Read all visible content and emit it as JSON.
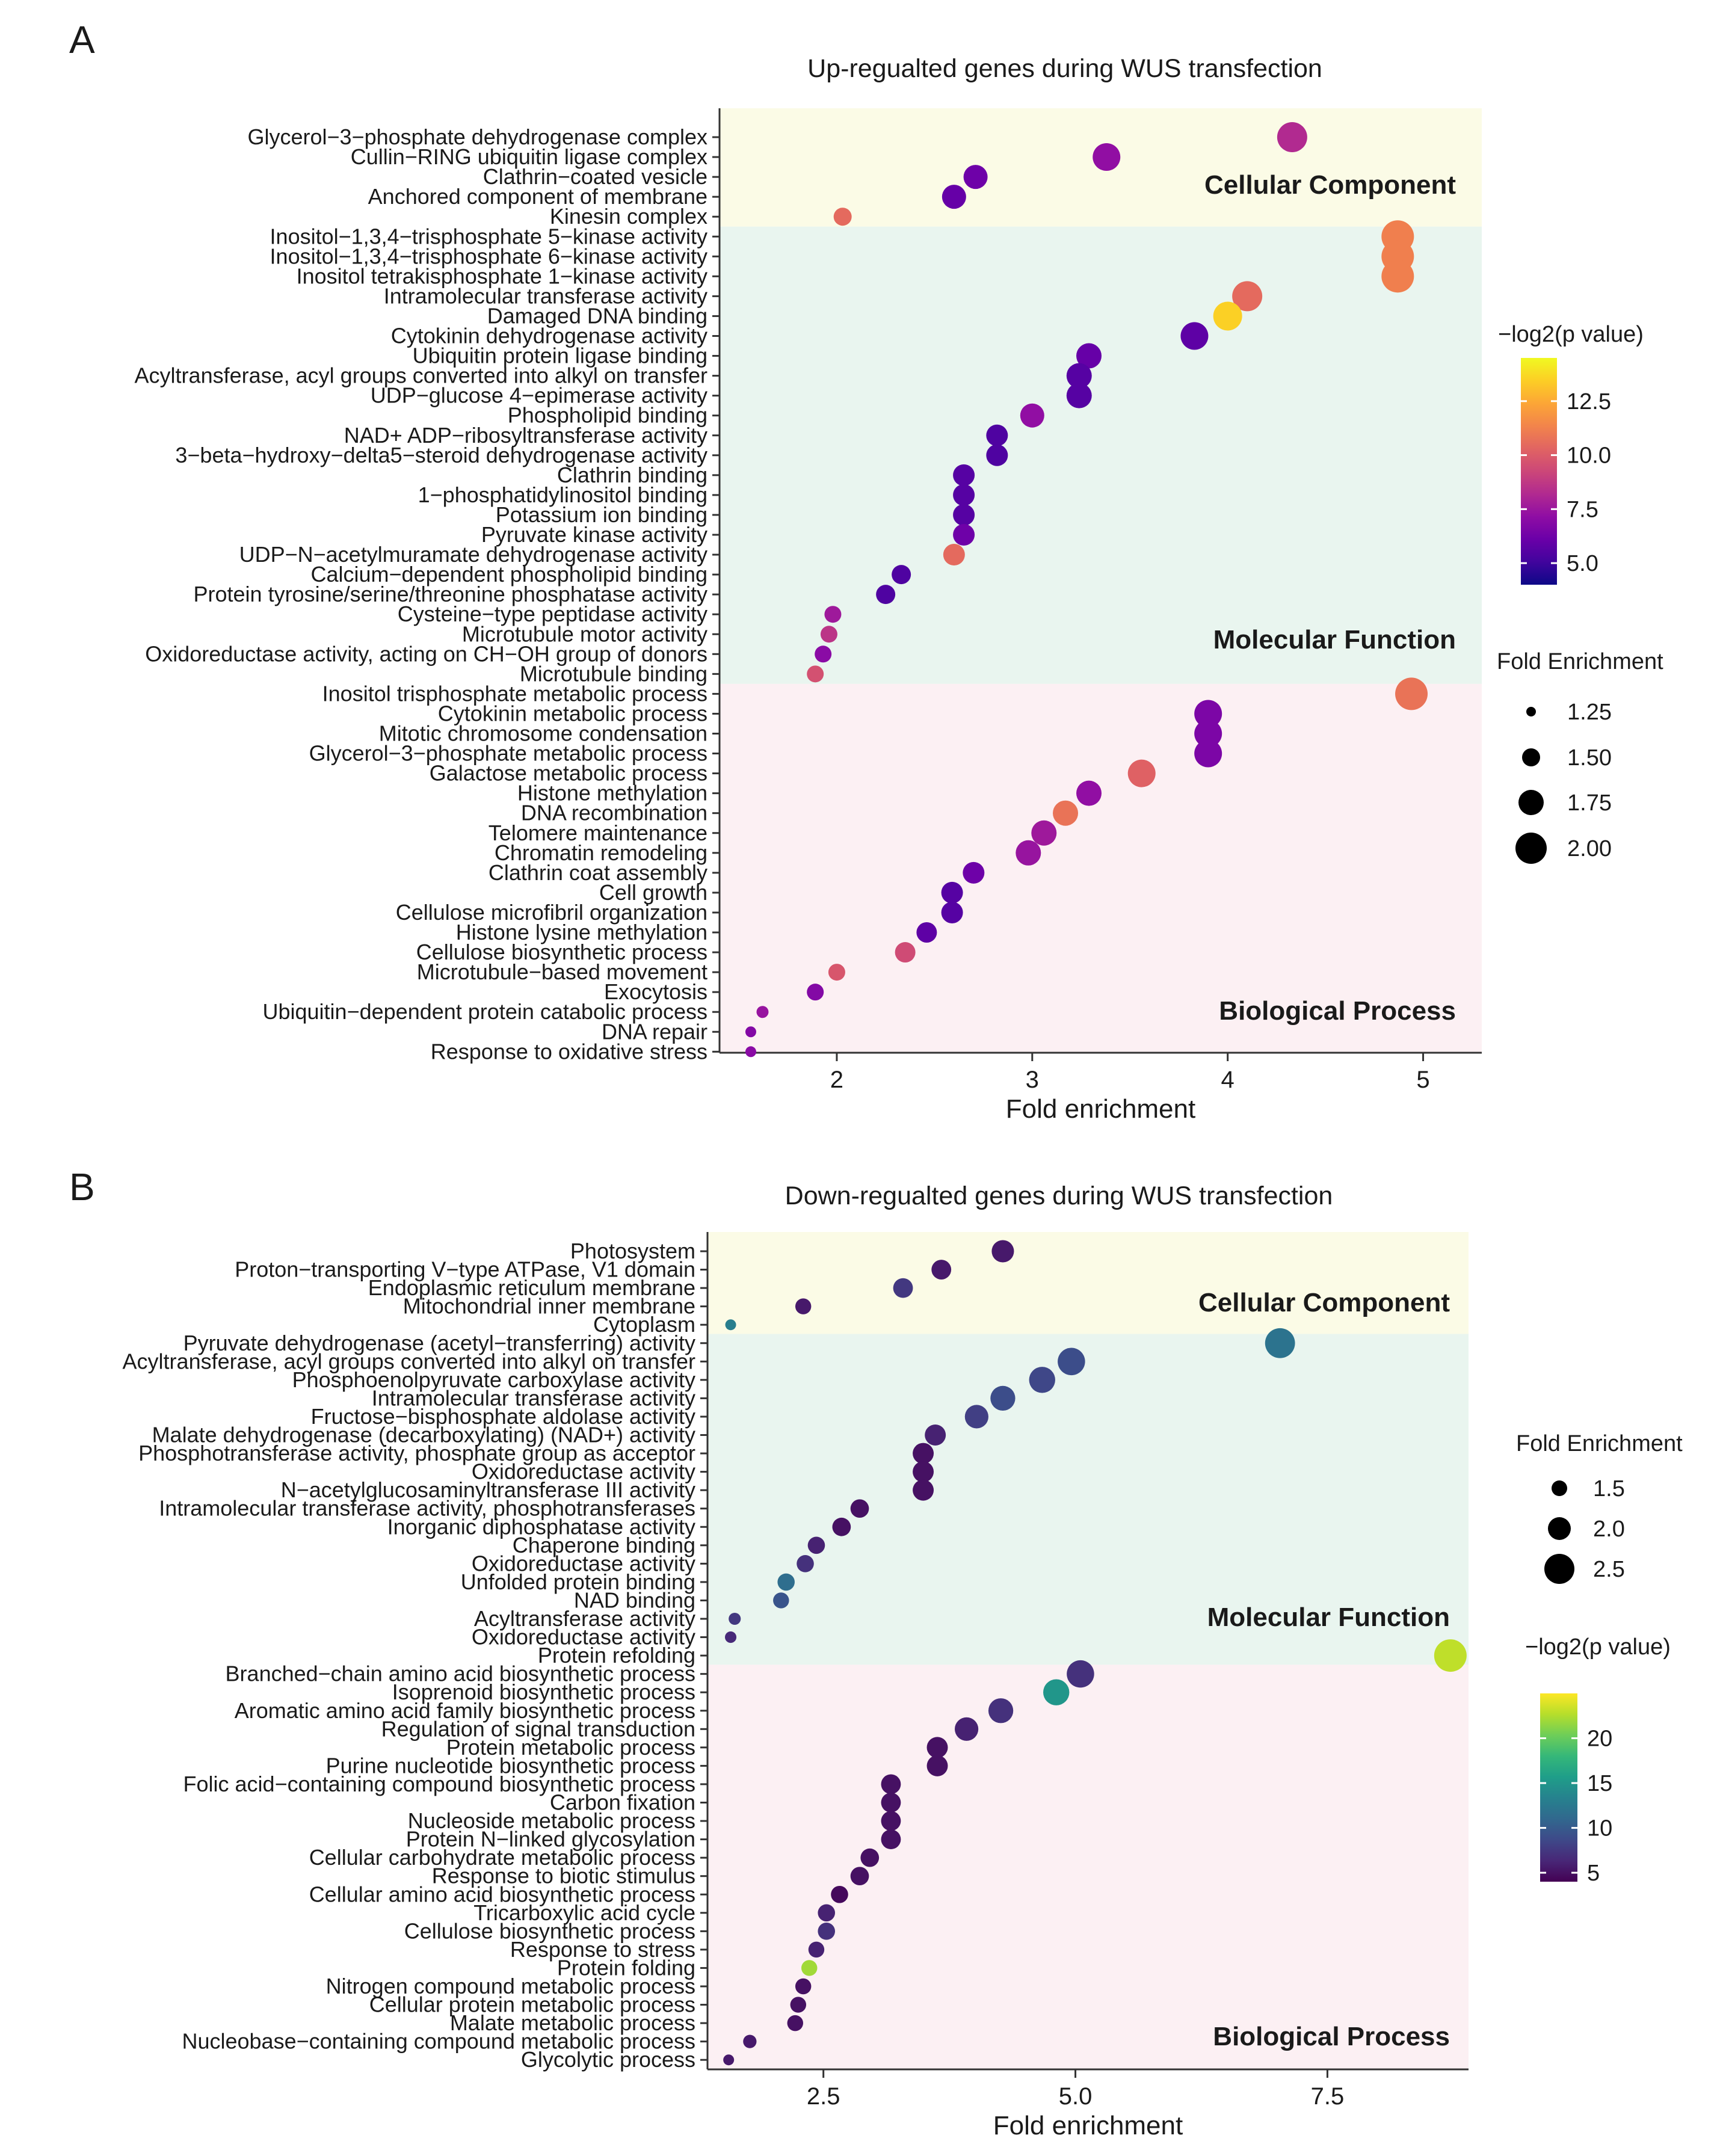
{
  "chart_data": [
    {
      "type": "scatter",
      "panel_label": "A",
      "title": "Up-regualted genes during WUS transfection",
      "xlabel": "Fold enrichment",
      "ylabel": "",
      "xlim": [
        1.4,
        5.3
      ],
      "x_ticks": [
        2,
        3,
        4,
        5
      ],
      "x_tick_labels": [
        "2",
        "3",
        "4",
        "5"
      ],
      "groups": [
        {
          "name": "Cellular Component",
          "color": "#fbfbe6",
          "start": 0,
          "end": 4
        },
        {
          "name": "Molecular Function",
          "color": "#e9f5ef",
          "start": 5,
          "end": 27
        },
        {
          "name": "Biological Process",
          "color": "#fcf0f3",
          "start": 28,
          "end": 46
        }
      ],
      "size_legend": {
        "title": "Fold Enrichment",
        "values": [
          1.25,
          1.5,
          1.75,
          2.0
        ],
        "labels": [
          "1.25",
          "1.50",
          "1.75",
          "2.00"
        ]
      },
      "color_legend": {
        "title": "−log2(p value)",
        "min": 4,
        "max": 14.5,
        "ticks": [
          5.0,
          7.5,
          10.0,
          12.5
        ],
        "tick_labels": [
          "5.0",
          "7.5",
          "10.0",
          "12.5"
        ],
        "palette": "plasma"
      },
      "categories": [
        "Glycerol−3−phosphate dehydrogenase complex",
        "Cullin−RING ubiquitin ligase complex",
        "Clathrin−coated vesicle",
        "Anchored component of membrane",
        "Kinesin complex",
        "Inositol−1,3,4−trisphosphate 5−kinase activity",
        "Inositol−1,3,4−trisphosphate 6−kinase activity",
        "Inositol tetrakisphosphate 1−kinase activity",
        "Intramolecular transferase activity",
        "Damaged DNA binding",
        "Cytokinin dehydrogenase activity",
        "Ubiquitin protein ligase binding",
        "Acyltransferase, acyl groups converted into alkyl on transfer",
        "UDP−glucose 4−epimerase activity",
        "Phospholipid binding",
        "NAD+ ADP−ribosyltransferase activity",
        "3−beta−hydroxy−delta5−steroid dehydrogenase activity",
        "Clathrin binding",
        "1−phosphatidylinositol binding",
        "Potassium ion binding",
        "Pyruvate kinase activity",
        "UDP−N−acetylmuramate dehydrogenase activity",
        "Calcium−dependent phospholipid binding",
        "Protein tyrosine/serine/threonine phosphatase activity",
        "Cysteine−type peptidase activity",
        "Microtubule motor activity",
        "Oxidoreductase activity, acting on CH−OH group of donors",
        "Microtubule binding",
        "Inositol trisphosphate metabolic process",
        "Cytokinin metabolic process",
        "Mitotic chromosome condensation",
        "Glycerol−3−phosphate metabolic process",
        "Galactose metabolic process",
        "Histone methylation",
        "DNA recombination",
        "Telomere maintenance",
        "Chromatin remodeling",
        "Clathrin coat assembly",
        "Cell growth",
        "Cellulose microfibril organization",
        "Histone lysine methylation",
        "Cellulose biosynthetic process",
        "Microtubule−based movement",
        "Exocytosis",
        "Ubiquitin−dependent protein catabolic process",
        "DNA repair",
        "Response to oxidative stress"
      ],
      "x": [
        4.33,
        3.38,
        2.71,
        2.6,
        2.03,
        4.87,
        4.87,
        4.87,
        4.1,
        4.0,
        3.83,
        3.29,
        3.24,
        3.24,
        3.0,
        2.82,
        2.82,
        2.65,
        2.65,
        2.65,
        2.65,
        2.6,
        2.33,
        2.25,
        1.98,
        1.96,
        1.93,
        1.89,
        4.94,
        3.9,
        3.9,
        3.9,
        3.56,
        3.29,
        3.17,
        3.06,
        2.98,
        2.7,
        2.59,
        2.59,
        2.46,
        2.35,
        2.0,
        1.89,
        1.62,
        1.56,
        1.56
      ],
      "size": [
        1.95,
        1.85,
        1.7,
        1.7,
        1.45,
        2.05,
        2.05,
        2.05,
        1.95,
        1.9,
        1.85,
        1.75,
        1.75,
        1.75,
        1.7,
        1.6,
        1.6,
        1.6,
        1.6,
        1.6,
        1.6,
        1.6,
        1.5,
        1.5,
        1.4,
        1.4,
        1.4,
        1.4,
        2.05,
        1.85,
        1.85,
        1.85,
        1.85,
        1.75,
        1.75,
        1.75,
        1.75,
        1.6,
        1.6,
        1.6,
        1.55,
        1.55,
        1.4,
        1.4,
        1.2,
        1.15,
        1.15
      ],
      "neg_log2_p": [
        8.2,
        7.2,
        6.2,
        6.0,
        10.5,
        11.2,
        11.2,
        11.2,
        10.5,
        13.5,
        5.8,
        6.0,
        5.6,
        5.6,
        7.2,
        5.4,
        5.4,
        5.6,
        5.6,
        5.6,
        6.2,
        10.5,
        5.4,
        5.4,
        7.6,
        8.6,
        7.0,
        9.6,
        10.8,
        6.6,
        6.6,
        6.6,
        10.2,
        7.2,
        10.8,
        7.6,
        7.4,
        6.2,
        5.6,
        5.6,
        5.8,
        9.4,
        9.8,
        6.8,
        7.4,
        6.8,
        7.0
      ]
    },
    {
      "type": "scatter",
      "panel_label": "B",
      "title": "Down-regualted genes during WUS transfection",
      "xlabel": "Fold enrichment",
      "ylabel": "",
      "xlim": [
        1.35,
        8.9
      ],
      "x_ticks": [
        2.5,
        5.0,
        7.5
      ],
      "x_tick_labels": [
        "2.5",
        "5.0",
        "7.5"
      ],
      "groups": [
        {
          "name": "Cellular Component",
          "color": "#fbfbe6",
          "start": 0,
          "end": 4
        },
        {
          "name": "Molecular Function",
          "color": "#e9f5ef",
          "start": 5,
          "end": 22
        },
        {
          "name": "Biological Process",
          "color": "#fcf0f3",
          "start": 23,
          "end": 44
        }
      ],
      "size_legend": {
        "title": "Fold Enrichment",
        "values": [
          1.5,
          2.0,
          2.5
        ],
        "labels": [
          "1.5",
          "2.0",
          "2.5"
        ]
      },
      "color_legend": {
        "title": "−log2(p value)",
        "min": 4,
        "max": 25,
        "ticks": [
          5,
          10,
          15,
          20
        ],
        "tick_labels": [
          "5",
          "10",
          "15",
          "20"
        ],
        "palette": "viridis"
      },
      "categories": [
        "Photosystem",
        "Proton−transporting V−type ATPase, V1 domain",
        "Endoplasmic reticulum membrane",
        "Mitochondrial inner membrane",
        "Cytoplasm",
        "Pyruvate dehydrogenase (acetyl−transferring) activity",
        "Acyltransferase, acyl groups converted into alkyl on transfer",
        "Phosphoenolpyruvate carboxylase activity",
        "Intramolecular transferase activity",
        "Fructose−bisphosphate aldolase activity",
        "Malate dehydrogenase (decarboxylating) (NAD+) activity",
        "Phosphotransferase activity, phosphate group as acceptor",
        "Oxidoreductase activity",
        "N−acetylglucosaminyltransferase III activity",
        "Intramolecular transferase activity, phosphotransferases",
        "Inorganic diphosphatase activity",
        "Chaperone binding",
        "Oxidoreductase activity",
        "Unfolded protein binding",
        "NAD binding",
        "Acyltransferase activity",
        "Oxidoreductase activity",
        "Protein refolding",
        "Branched−chain amino acid biosynthetic process",
        "Isoprenoid biosynthetic process",
        "Aromatic amino acid family biosynthetic process",
        "Regulation of signal transduction",
        "Protein metabolic process",
        "Purine nucleotide biosynthetic process",
        "Folic acid−containing compound biosynthetic process",
        "Carbon fixation",
        "Nucleoside metabolic process",
        "Protein N−linked glycosylation",
        "Cellular carbohydrate metabolic process",
        "Response to biotic stimulus",
        "Cellular amino acid biosynthetic process",
        "Tricarboxylic acid cycle",
        "Cellulose biosynthetic process",
        "Response to stress",
        "Protein folding",
        "Nitrogen compound metabolic process",
        "Cellular protein metabolic process",
        "Malate metabolic process",
        "Nucleobase−containing compound metabolic process",
        "Glycolytic process"
      ],
      "x": [
        4.28,
        3.67,
        3.29,
        2.3,
        1.58,
        7.03,
        4.96,
        4.67,
        4.28,
        4.02,
        3.61,
        3.49,
        3.49,
        3.49,
        2.86,
        2.68,
        2.43,
        2.32,
        2.13,
        2.08,
        1.62,
        1.58,
        8.72,
        5.05,
        4.81,
        4.26,
        3.92,
        3.63,
        3.63,
        3.17,
        3.17,
        3.17,
        3.17,
        2.96,
        2.86,
        2.66,
        2.53,
        2.53,
        2.43,
        2.36,
        2.3,
        2.25,
        2.22,
        1.77,
        1.56
      ],
      "size": [
        2.1,
        1.9,
        1.9,
        1.6,
        1.2,
        2.7,
        2.5,
        2.4,
        2.3,
        2.2,
        2.0,
        2.0,
        2.0,
        2.0,
        1.8,
        1.8,
        1.7,
        1.7,
        1.7,
        1.6,
        1.3,
        1.25,
        2.9,
        2.5,
        2.4,
        2.3,
        2.2,
        2.0,
        2.0,
        1.9,
        1.9,
        1.9,
        1.9,
        1.8,
        1.8,
        1.7,
        1.7,
        1.7,
        1.6,
        1.6,
        1.6,
        1.6,
        1.6,
        1.4,
        1.2
      ],
      "neg_log2_p": [
        5.5,
        5.5,
        7.5,
        5.5,
        13.0,
        12.0,
        9.0,
        8.5,
        9.0,
        8.0,
        6.0,
        5.0,
        5.0,
        5.0,
        5.0,
        5.0,
        6.0,
        7.0,
        11.5,
        9.5,
        7.5,
        6.5,
        23.0,
        7.0,
        15.0,
        7.0,
        6.0,
        5.0,
        5.0,
        5.0,
        5.0,
        5.0,
        5.0,
        5.0,
        5.0,
        4.5,
        6.0,
        7.0,
        6.0,
        22.0,
        5.0,
        5.0,
        5.0,
        5.5,
        5.5
      ]
    }
  ]
}
